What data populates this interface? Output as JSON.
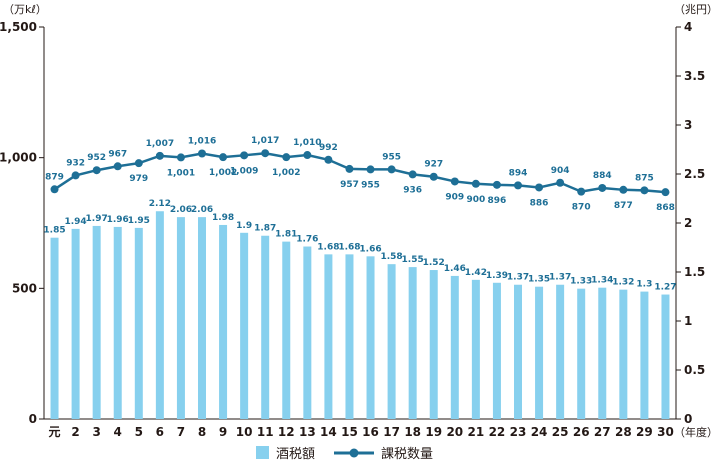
{
  "chart_data": {
    "type": "bar",
    "units": {
      "left": "（万kℓ）",
      "right": "（兆円）",
      "x": "（年度）"
    },
    "categories": [
      "元",
      "2",
      "3",
      "4",
      "5",
      "6",
      "7",
      "8",
      "9",
      "10",
      "11",
      "12",
      "13",
      "14",
      "15",
      "16",
      "17",
      "18",
      "19",
      "20",
      "21",
      "22",
      "23",
      "24",
      "25",
      "26",
      "27",
      "28",
      "29",
      "30"
    ],
    "series": [
      {
        "name": "酒税額",
        "type": "bar",
        "axis": "right",
        "values": [
          1.85,
          1.94,
          1.97,
          1.96,
          1.95,
          2.12,
          2.06,
          2.06,
          1.98,
          1.9,
          1.87,
          1.81,
          1.76,
          1.68,
          1.68,
          1.66,
          1.58,
          1.55,
          1.52,
          1.46,
          1.42,
          1.39,
          1.37,
          1.35,
          1.37,
          1.33,
          1.34,
          1.32,
          1.3,
          1.27
        ],
        "labels": [
          "1.85",
          "1.94",
          "1.97",
          "1.96",
          "1.95",
          "2.12",
          "2.06",
          "2.06",
          "1.98",
          "1.9",
          "1.87",
          "1.81",
          "1.76",
          "1.68",
          "1.68",
          "1.66",
          "1.58",
          "1.55",
          "1.52",
          "1.46",
          "1.42",
          "1.39",
          "1.37",
          "1.35",
          "1.37",
          "1.33",
          "1.34",
          "1.32",
          "1.3",
          "1.27"
        ]
      },
      {
        "name": "課税数量",
        "type": "line",
        "axis": "left",
        "values": [
          879,
          932,
          952,
          967,
          979,
          1007,
          1001,
          1016,
          1002,
          1009,
          1017,
          1002,
          1010,
          992,
          957,
          955,
          955,
          936,
          927,
          909,
          900,
          896,
          894,
          886,
          904,
          870,
          884,
          877,
          875,
          868
        ],
        "labels": [
          "879",
          "932",
          "952",
          "967",
          "979",
          "1,007",
          "1,001",
          "1,016",
          "1,002",
          "1,009",
          "1,017",
          "1,002",
          "1,010",
          "992",
          "957",
          "955",
          "955",
          "936",
          "927",
          "909",
          "900",
          "896",
          "894",
          "886",
          "904",
          "870",
          "884",
          "877",
          "875",
          "868"
        ]
      }
    ],
    "y_left": {
      "range": [
        0,
        1500
      ],
      "ticks": [
        "0",
        "500",
        "1,000",
        "1,500"
      ],
      "tick_values": [
        0,
        500,
        1000,
        1500
      ]
    },
    "y_right": {
      "range": [
        0,
        4
      ],
      "ticks": [
        "0",
        "0.5",
        "1",
        "1.5",
        "2",
        "2.5",
        "3",
        "3.5",
        "4"
      ],
      "tick_values": [
        0,
        0.5,
        1,
        1.5,
        2,
        2.5,
        3,
        3.5,
        4
      ]
    },
    "grid": false,
    "legend_position": "bottom-center",
    "colors": {
      "bar": "#87d0ee",
      "line": "#1e6f96",
      "axis": "#231815",
      "label": "#1e6f96"
    }
  }
}
